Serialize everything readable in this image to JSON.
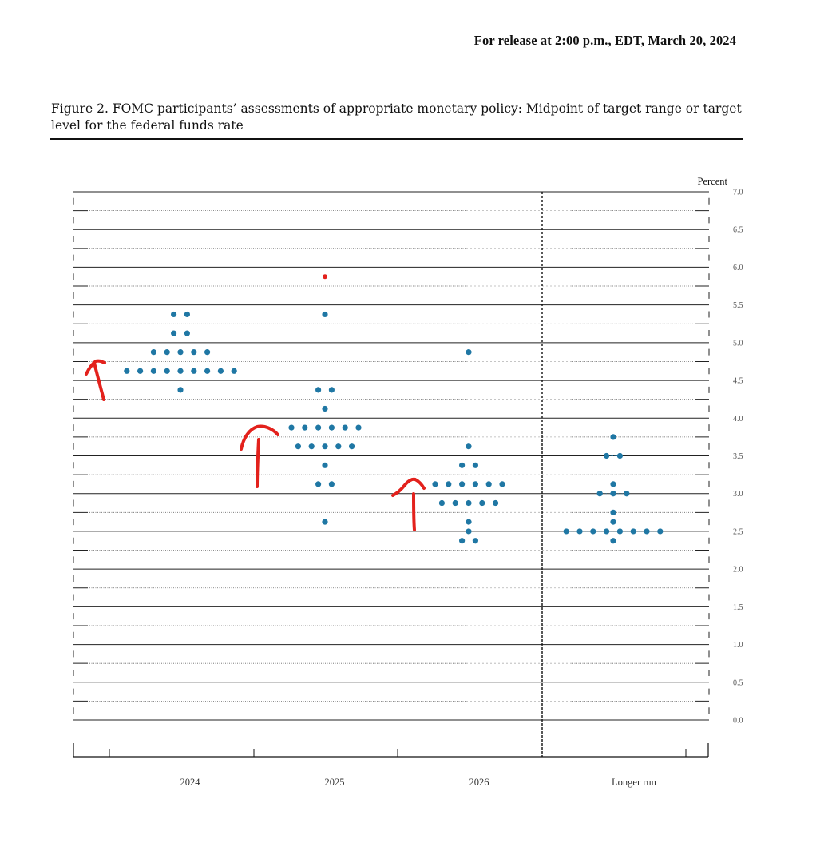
{
  "header": {
    "release_text": "For release at 2:00 p.m., EDT, March 20, 2024"
  },
  "figure": {
    "caption": "Figure 2.  FOMC participants’ assessments of appropriate monetary policy: Midpoint of target range or target level for the federal funds rate"
  },
  "chart_data": {
    "type": "scatter",
    "title": "",
    "ylabel": "Percent",
    "ylim": [
      0,
      7
    ],
    "yticks": [
      "0.0",
      "0.5",
      "1.0",
      "1.5",
      "2.0",
      "2.5",
      "3.0",
      "3.5",
      "4.0",
      "4.5",
      "5.0",
      "5.5",
      "6.0",
      "6.5",
      "7.0"
    ],
    "categories": [
      "2024",
      "2025",
      "2026",
      "Longer run"
    ],
    "grid": true,
    "dot_color": "#1f77a4",
    "highlight_color": "#e3211c",
    "series": [
      {
        "category": "2024",
        "points": [
          {
            "y": 5.375,
            "n": 2
          },
          {
            "y": 5.125,
            "n": 2
          },
          {
            "y": 4.875,
            "n": 5
          },
          {
            "y": 4.625,
            "n": 9
          },
          {
            "y": 4.375,
            "n": 1
          }
        ]
      },
      {
        "category": "2025",
        "points": [
          {
            "y": 5.875,
            "n": 1,
            "highlight": true
          },
          {
            "y": 5.375,
            "n": 1
          },
          {
            "y": 4.375,
            "n": 2
          },
          {
            "y": 4.125,
            "n": 1
          },
          {
            "y": 3.875,
            "n": 6
          },
          {
            "y": 3.625,
            "n": 5
          },
          {
            "y": 3.375,
            "n": 1
          },
          {
            "y": 3.125,
            "n": 2
          },
          {
            "y": 2.625,
            "n": 1
          }
        ]
      },
      {
        "category": "2026",
        "points": [
          {
            "y": 4.875,
            "n": 1
          },
          {
            "y": 3.625,
            "n": 1
          },
          {
            "y": 3.375,
            "n": 2
          },
          {
            "y": 3.125,
            "n": 6
          },
          {
            "y": 2.875,
            "n": 5
          },
          {
            "y": 2.625,
            "n": 1
          },
          {
            "y": 2.5,
            "n": 1
          },
          {
            "y": 2.375,
            "n": 2
          }
        ]
      },
      {
        "category": "Longer run",
        "points": [
          {
            "y": 3.75,
            "n": 1
          },
          {
            "y": 3.5,
            "n": 2
          },
          {
            "y": 3.125,
            "n": 1
          },
          {
            "y": 3.0,
            "n": 3
          },
          {
            "y": 2.75,
            "n": 1
          },
          {
            "y": 2.625,
            "n": 1
          },
          {
            "y": 2.5,
            "n": 8
          },
          {
            "y": 2.375,
            "n": 1
          }
        ]
      }
    ],
    "annotations": "hand-drawn red upward arrows near 2024, 2025 and 2026 columns"
  }
}
